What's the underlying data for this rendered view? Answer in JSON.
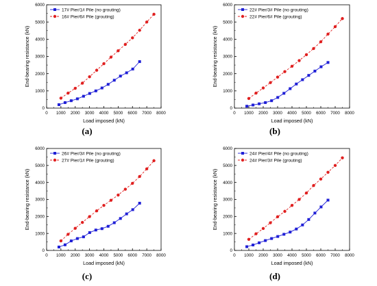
{
  "chart_data": [
    {
      "type": "line",
      "panel_label": "(a)",
      "xlabel": "Load imposed (kN)",
      "ylabel": "End-bearing resistance (kN)",
      "xlim": [
        0,
        8000
      ],
      "ylim": [
        0,
        6000
      ],
      "xticks": [
        "0",
        "1000",
        "2000",
        "3000",
        "4000",
        "5000",
        "6000",
        "7000",
        "8000"
      ],
      "yticks": [
        "0",
        "1000",
        "2000",
        "3000",
        "4000",
        "5000",
        "6000"
      ],
      "legend_position": "top-left",
      "grid": false,
      "series": [
        {
          "name": "17# Pier/1# Pile (no grouting)",
          "color": "#1f1fd6",
          "marker": "square",
          "line_style": "solid",
          "x": [
            860,
            1290,
            1720,
            2150,
            2580,
            3010,
            3440,
            3870,
            4300,
            4730,
            5160,
            5590,
            6020,
            6500
          ],
          "y": [
            200,
            320,
            430,
            540,
            690,
            850,
            1000,
            1170,
            1380,
            1620,
            1860,
            2050,
            2270,
            2700
          ]
        },
        {
          "name": "16# Pier/6# Pile (grouting)",
          "color": "#e02020",
          "marker": "circle",
          "line_style": "dashed",
          "x": [
            1000,
            1500,
            2000,
            2500,
            3000,
            3500,
            4000,
            4500,
            5000,
            5500,
            6000,
            6500,
            7000,
            7500
          ],
          "y": [
            580,
            870,
            1150,
            1450,
            1820,
            2200,
            2580,
            2960,
            3330,
            3700,
            4080,
            4520,
            5000,
            5450
          ]
        }
      ]
    },
    {
      "type": "line",
      "panel_label": "(b)",
      "xlabel": "Load imposed (kN)",
      "ylabel": "End-bearing resistance (kN)",
      "xlim": [
        0,
        8000
      ],
      "ylim": [
        0,
        6000
      ],
      "xticks": [
        "0",
        "1000",
        "2000",
        "3000",
        "4000",
        "5000",
        "6000",
        "7000",
        "8000"
      ],
      "yticks": [
        "0",
        "1000",
        "2000",
        "3000",
        "4000",
        "5000",
        "6000"
      ],
      "legend_position": "top-left",
      "grid": false,
      "series": [
        {
          "name": "22# Pier/3# Pile (no grouting)",
          "color": "#1f1fd6",
          "marker": "square",
          "line_style": "solid",
          "x": [
            860,
            1290,
            1720,
            2150,
            2580,
            3010,
            3440,
            3870,
            4300,
            4730,
            5160,
            5590,
            6020,
            6500
          ],
          "y": [
            110,
            180,
            250,
            320,
            430,
            620,
            860,
            1130,
            1400,
            1650,
            1900,
            2150,
            2400,
            2650
          ]
        },
        {
          "name": "22# Pier/6# Pile (grouting)",
          "color": "#e02020",
          "marker": "circle",
          "line_style": "dashed",
          "x": [
            1000,
            1500,
            2000,
            2500,
            3000,
            3500,
            4000,
            4500,
            5000,
            5500,
            6000,
            6500,
            7000,
            7500
          ],
          "y": [
            560,
            870,
            1170,
            1480,
            1800,
            2120,
            2430,
            2760,
            3100,
            3460,
            3850,
            4300,
            4730,
            5200
          ]
        }
      ]
    },
    {
      "type": "line",
      "panel_label": "(c)",
      "xlabel": "Load imposed (kN)",
      "ylabel": "End-bearing resistance (kN)",
      "xlim": [
        0,
        8000
      ],
      "ylim": [
        0,
        6000
      ],
      "xticks": [
        "0",
        "1000",
        "2000",
        "3000",
        "4000",
        "5000",
        "6000",
        "7000",
        "8000"
      ],
      "yticks": [
        "0",
        "1000",
        "2000",
        "3000",
        "4000",
        "5000",
        "6000"
      ],
      "legend_position": "top-left",
      "grid": false,
      "series": [
        {
          "name": "26# Pier/3# Pile (no grouting)",
          "color": "#1f1fd6",
          "marker": "square",
          "line_style": "solid",
          "x": [
            860,
            1290,
            1720,
            2150,
            2580,
            3010,
            3440,
            3870,
            4300,
            4730,
            5160,
            5590,
            6020,
            6500
          ],
          "y": [
            200,
            330,
            560,
            700,
            800,
            1050,
            1200,
            1280,
            1420,
            1630,
            1880,
            2150,
            2400,
            2780
          ]
        },
        {
          "name": "27# Pier/1# Pile (grouting)",
          "color": "#e02020",
          "marker": "circle",
          "line_style": "dashed",
          "x": [
            1000,
            1500,
            2000,
            2500,
            3000,
            3500,
            4000,
            4500,
            5000,
            5500,
            6000,
            6500,
            7000,
            7500
          ],
          "y": [
            560,
            950,
            1300,
            1650,
            1990,
            2330,
            2650,
            2950,
            3260,
            3600,
            3950,
            4350,
            4800,
            5280
          ]
        }
      ]
    },
    {
      "type": "line",
      "panel_label": "(d)",
      "xlabel": "Load imposed (kN)",
      "ylabel": "End-bearing resistance (kN)",
      "xlim": [
        0,
        8000
      ],
      "ylim": [
        0,
        6000
      ],
      "xticks": [
        "0",
        "1000",
        "2000",
        "3000",
        "4000",
        "5000",
        "6000",
        "7000",
        "8000"
      ],
      "yticks": [
        "0",
        "1000",
        "2000",
        "3000",
        "4000",
        "5000",
        "6000"
      ],
      "legend_position": "top-left",
      "grid": false,
      "series": [
        {
          "name": "24# Pier/4# Pile (no grouting)",
          "color": "#1f1fd6",
          "marker": "square",
          "line_style": "solid",
          "x": [
            860,
            1290,
            1720,
            2150,
            2580,
            3010,
            3440,
            3870,
            4300,
            4730,
            5160,
            5590,
            6020,
            6500
          ],
          "y": [
            220,
            320,
            450,
            580,
            700,
            820,
            950,
            1080,
            1260,
            1500,
            1820,
            2200,
            2560,
            2960
          ]
        },
        {
          "name": "24# Pier/3# Pile (grouting)",
          "color": "#e02020",
          "marker": "circle",
          "line_style": "dashed",
          "x": [
            1000,
            1500,
            2000,
            2500,
            3000,
            3500,
            4000,
            4500,
            5000,
            5500,
            6000,
            6500,
            7000,
            7500
          ],
          "y": [
            650,
            980,
            1290,
            1630,
            1980,
            2300,
            2650,
            3000,
            3380,
            3820,
            4200,
            4600,
            5000,
            5450
          ]
        }
      ]
    }
  ]
}
